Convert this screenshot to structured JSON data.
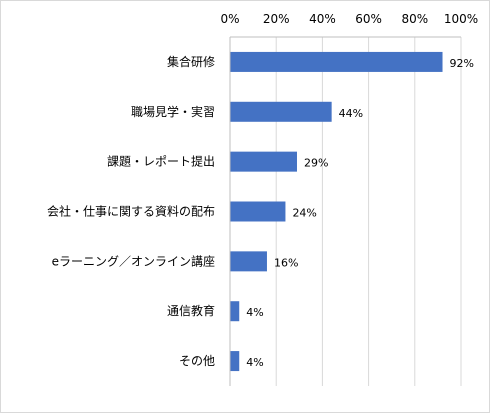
{
  "chart_data": {
    "type": "bar",
    "orientation": "horizontal",
    "categories": [
      "集合研修",
      "職場見学・実習",
      "課題・レポート提出",
      "会社・仕事に関する資料の配布",
      "eラーニング／オンライン講座",
      "通信教育",
      "その他"
    ],
    "values": [
      92,
      44,
      29,
      24,
      16,
      4,
      4
    ],
    "data_labels": [
      "92%",
      "44%",
      "29%",
      "24%",
      "16%",
      "4%",
      "4%"
    ],
    "xlim": [
      0,
      100
    ],
    "x_ticks": [
      0,
      20,
      40,
      60,
      80,
      100
    ],
    "x_tick_labels": [
      "0%",
      "20%",
      "40%",
      "60%",
      "80%",
      "100%"
    ],
    "x_axis_position": "top",
    "grid": true,
    "legend": "none",
    "bar_color": "#4472C4"
  }
}
